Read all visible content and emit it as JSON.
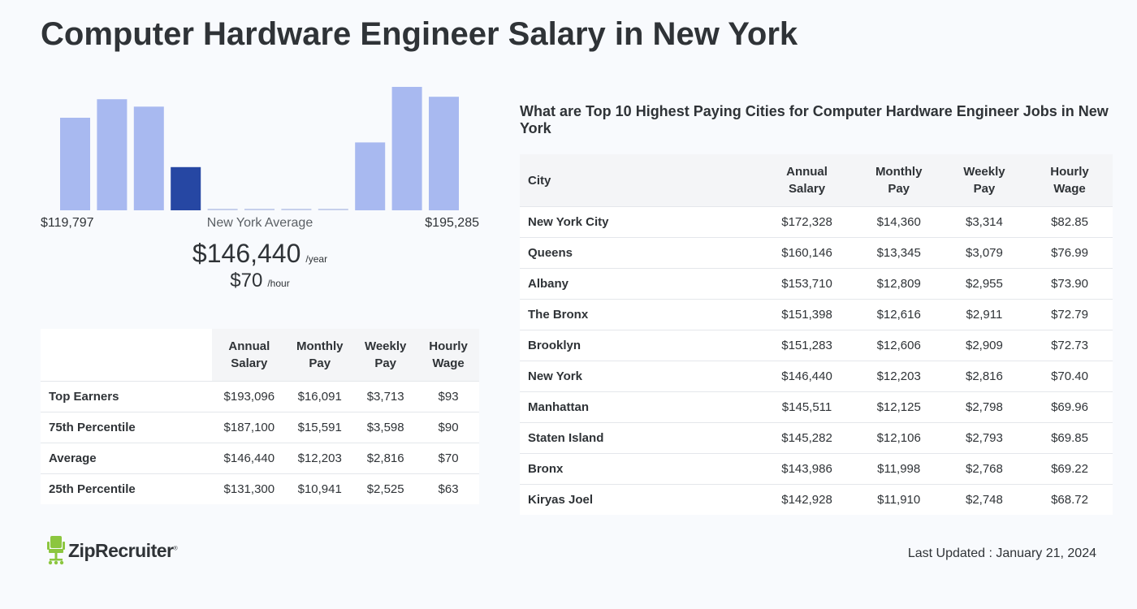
{
  "page": {
    "title": "Computer Hardware Engineer Salary in New York"
  },
  "chart_data": {
    "type": "bar",
    "title": "",
    "xlabel": "",
    "ylabel": "",
    "grid": false,
    "range_min_label": "$119,797",
    "range_max_label": "$195,285",
    "average_caption": "New York Average",
    "values": [
      75,
      90,
      84,
      35,
      0.6,
      0.6,
      0.6,
      0.6,
      55,
      100,
      92
    ],
    "highlight_index": 3,
    "ylim": [
      0,
      100
    ],
    "colors": {
      "bar": "#a8b9f0",
      "highlight": "#2647a3",
      "empty": "#c6d0ec"
    }
  },
  "average": {
    "annual": "$146,440",
    "annual_unit": "/year",
    "hourly": "$70",
    "hourly_unit": "/hour"
  },
  "percentile_table": {
    "headers": [
      "",
      "Annual\nSalary",
      "Monthly\nPay",
      "Weekly\nPay",
      "Hourly\nWage"
    ],
    "rows": [
      [
        "Top Earners",
        "$193,096",
        "$16,091",
        "$3,713",
        "$93"
      ],
      [
        "75th Percentile",
        "$187,100",
        "$15,591",
        "$3,598",
        "$90"
      ],
      [
        "Average",
        "$146,440",
        "$12,203",
        "$2,816",
        "$70"
      ],
      [
        "25th Percentile",
        "$131,300",
        "$10,941",
        "$2,525",
        "$63"
      ]
    ]
  },
  "cities": {
    "heading": "What are Top 10 Highest Paying Cities for Computer Hardware Engineer Jobs in New York",
    "headers": [
      "City",
      "Annual\nSalary",
      "Monthly\nPay",
      "Weekly\nPay",
      "Hourly\nWage"
    ],
    "rows": [
      [
        "New York City",
        "$172,328",
        "$14,360",
        "$3,314",
        "$82.85"
      ],
      [
        "Queens",
        "$160,146",
        "$13,345",
        "$3,079",
        "$76.99"
      ],
      [
        "Albany",
        "$153,710",
        "$12,809",
        "$2,955",
        "$73.90"
      ],
      [
        "The Bronx",
        "$151,398",
        "$12,616",
        "$2,911",
        "$72.79"
      ],
      [
        "Brooklyn",
        "$151,283",
        "$12,606",
        "$2,909",
        "$72.73"
      ],
      [
        "New York",
        "$146,440",
        "$12,203",
        "$2,816",
        "$70.40"
      ],
      [
        "Manhattan",
        "$145,511",
        "$12,125",
        "$2,798",
        "$69.96"
      ],
      [
        "Staten Island",
        "$145,282",
        "$12,106",
        "$2,793",
        "$69.85"
      ],
      [
        "Bronx",
        "$143,986",
        "$11,998",
        "$2,768",
        "$69.22"
      ],
      [
        "Kiryas Joel",
        "$142,928",
        "$11,910",
        "$2,748",
        "$68.72"
      ]
    ]
  },
  "footer": {
    "logo_text": "ZipRecruiter",
    "logo_reg": "®",
    "logo_color": "#8cc63f",
    "last_updated": "Last Updated : January 21, 2024"
  }
}
